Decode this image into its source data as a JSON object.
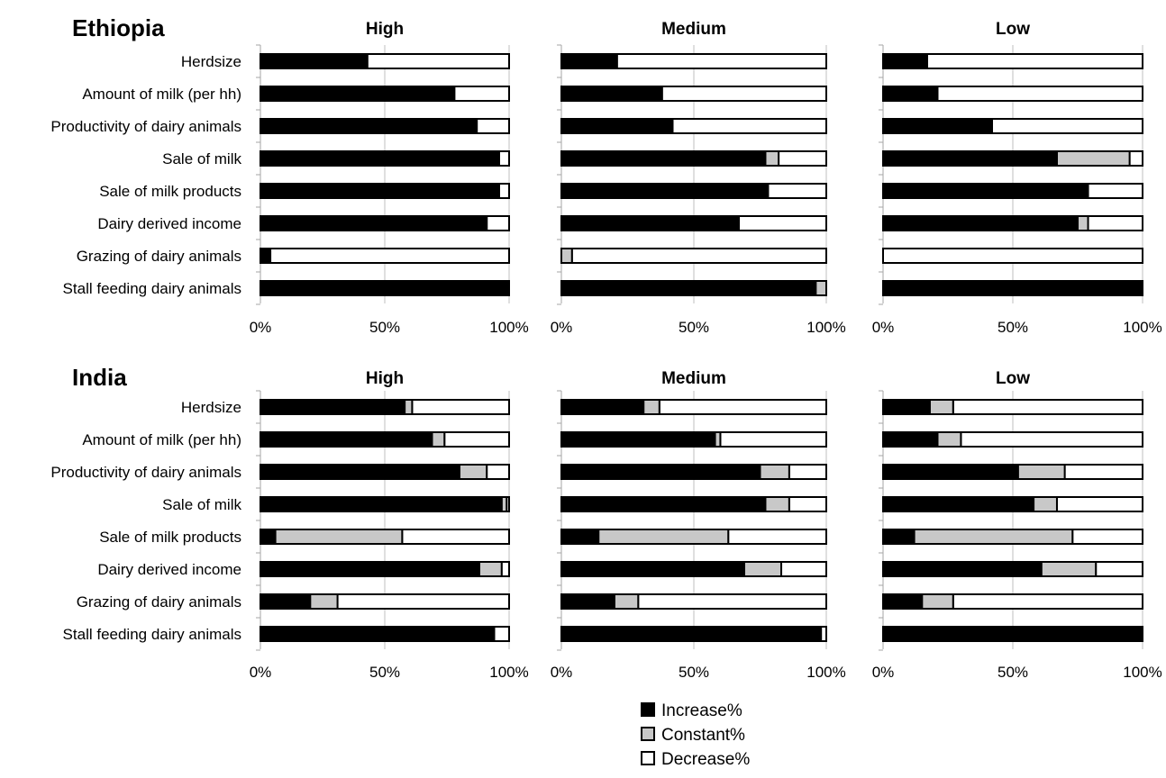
{
  "chart_data": {
    "type": "bar",
    "stacked": "percent",
    "orientation": "horizontal",
    "grid": true,
    "legend_position": "bottom-center",
    "tick_labels": [
      "0%",
      "50%",
      "100%"
    ],
    "xlim": [
      0,
      100
    ],
    "categories": [
      "Herdsize",
      "Amount of milk (per hh)",
      "Productivity of dairy animals",
      "Sale of milk",
      "Sale of milk products",
      "Dairy derived income",
      "Grazing of dairy animals",
      "Stall feeding dairy animals"
    ],
    "series_names": [
      "Increase%",
      "Constant%",
      "Decrease%"
    ],
    "colors": {
      "increase": "#000000",
      "constant": "#c8c8c8",
      "decrease": "#ffffff",
      "outline": "#000000",
      "grid": "#bfbfbf"
    },
    "groups": [
      {
        "region": "Ethiopia",
        "panels": [
          {
            "title": "High",
            "increase": [
              43,
              78,
              87,
              96,
              96,
              91,
              4,
              100
            ],
            "constant": [
              0,
              0,
              0,
              0,
              0,
              0,
              0,
              0
            ]
          },
          {
            "title": "Medium",
            "increase": [
              21,
              38,
              42,
              77,
              78,
              67,
              0,
              96
            ],
            "constant": [
              0,
              0,
              0,
              5,
              0,
              0,
              4,
              4
            ]
          },
          {
            "title": "Low",
            "increase": [
              17,
              21,
              42,
              67,
              79,
              75,
              0,
              100
            ],
            "constant": [
              0,
              0,
              0,
              28,
              0,
              4,
              0,
              0
            ]
          }
        ]
      },
      {
        "region": "India",
        "panels": [
          {
            "title": "High",
            "increase": [
              58,
              69,
              80,
              97,
              6,
              88,
              20,
              94
            ],
            "constant": [
              3,
              5,
              11,
              2,
              51,
              9,
              11,
              0
            ]
          },
          {
            "title": "Medium",
            "increase": [
              31,
              58,
              75,
              77,
              14,
              69,
              20,
              98
            ],
            "constant": [
              6,
              2,
              11,
              9,
              49,
              14,
              9,
              0
            ]
          },
          {
            "title": "Low",
            "increase": [
              18,
              21,
              52,
              58,
              12,
              61,
              15,
              100
            ],
            "constant": [
              9,
              9,
              18,
              9,
              61,
              21,
              12,
              0
            ]
          }
        ]
      }
    ]
  }
}
